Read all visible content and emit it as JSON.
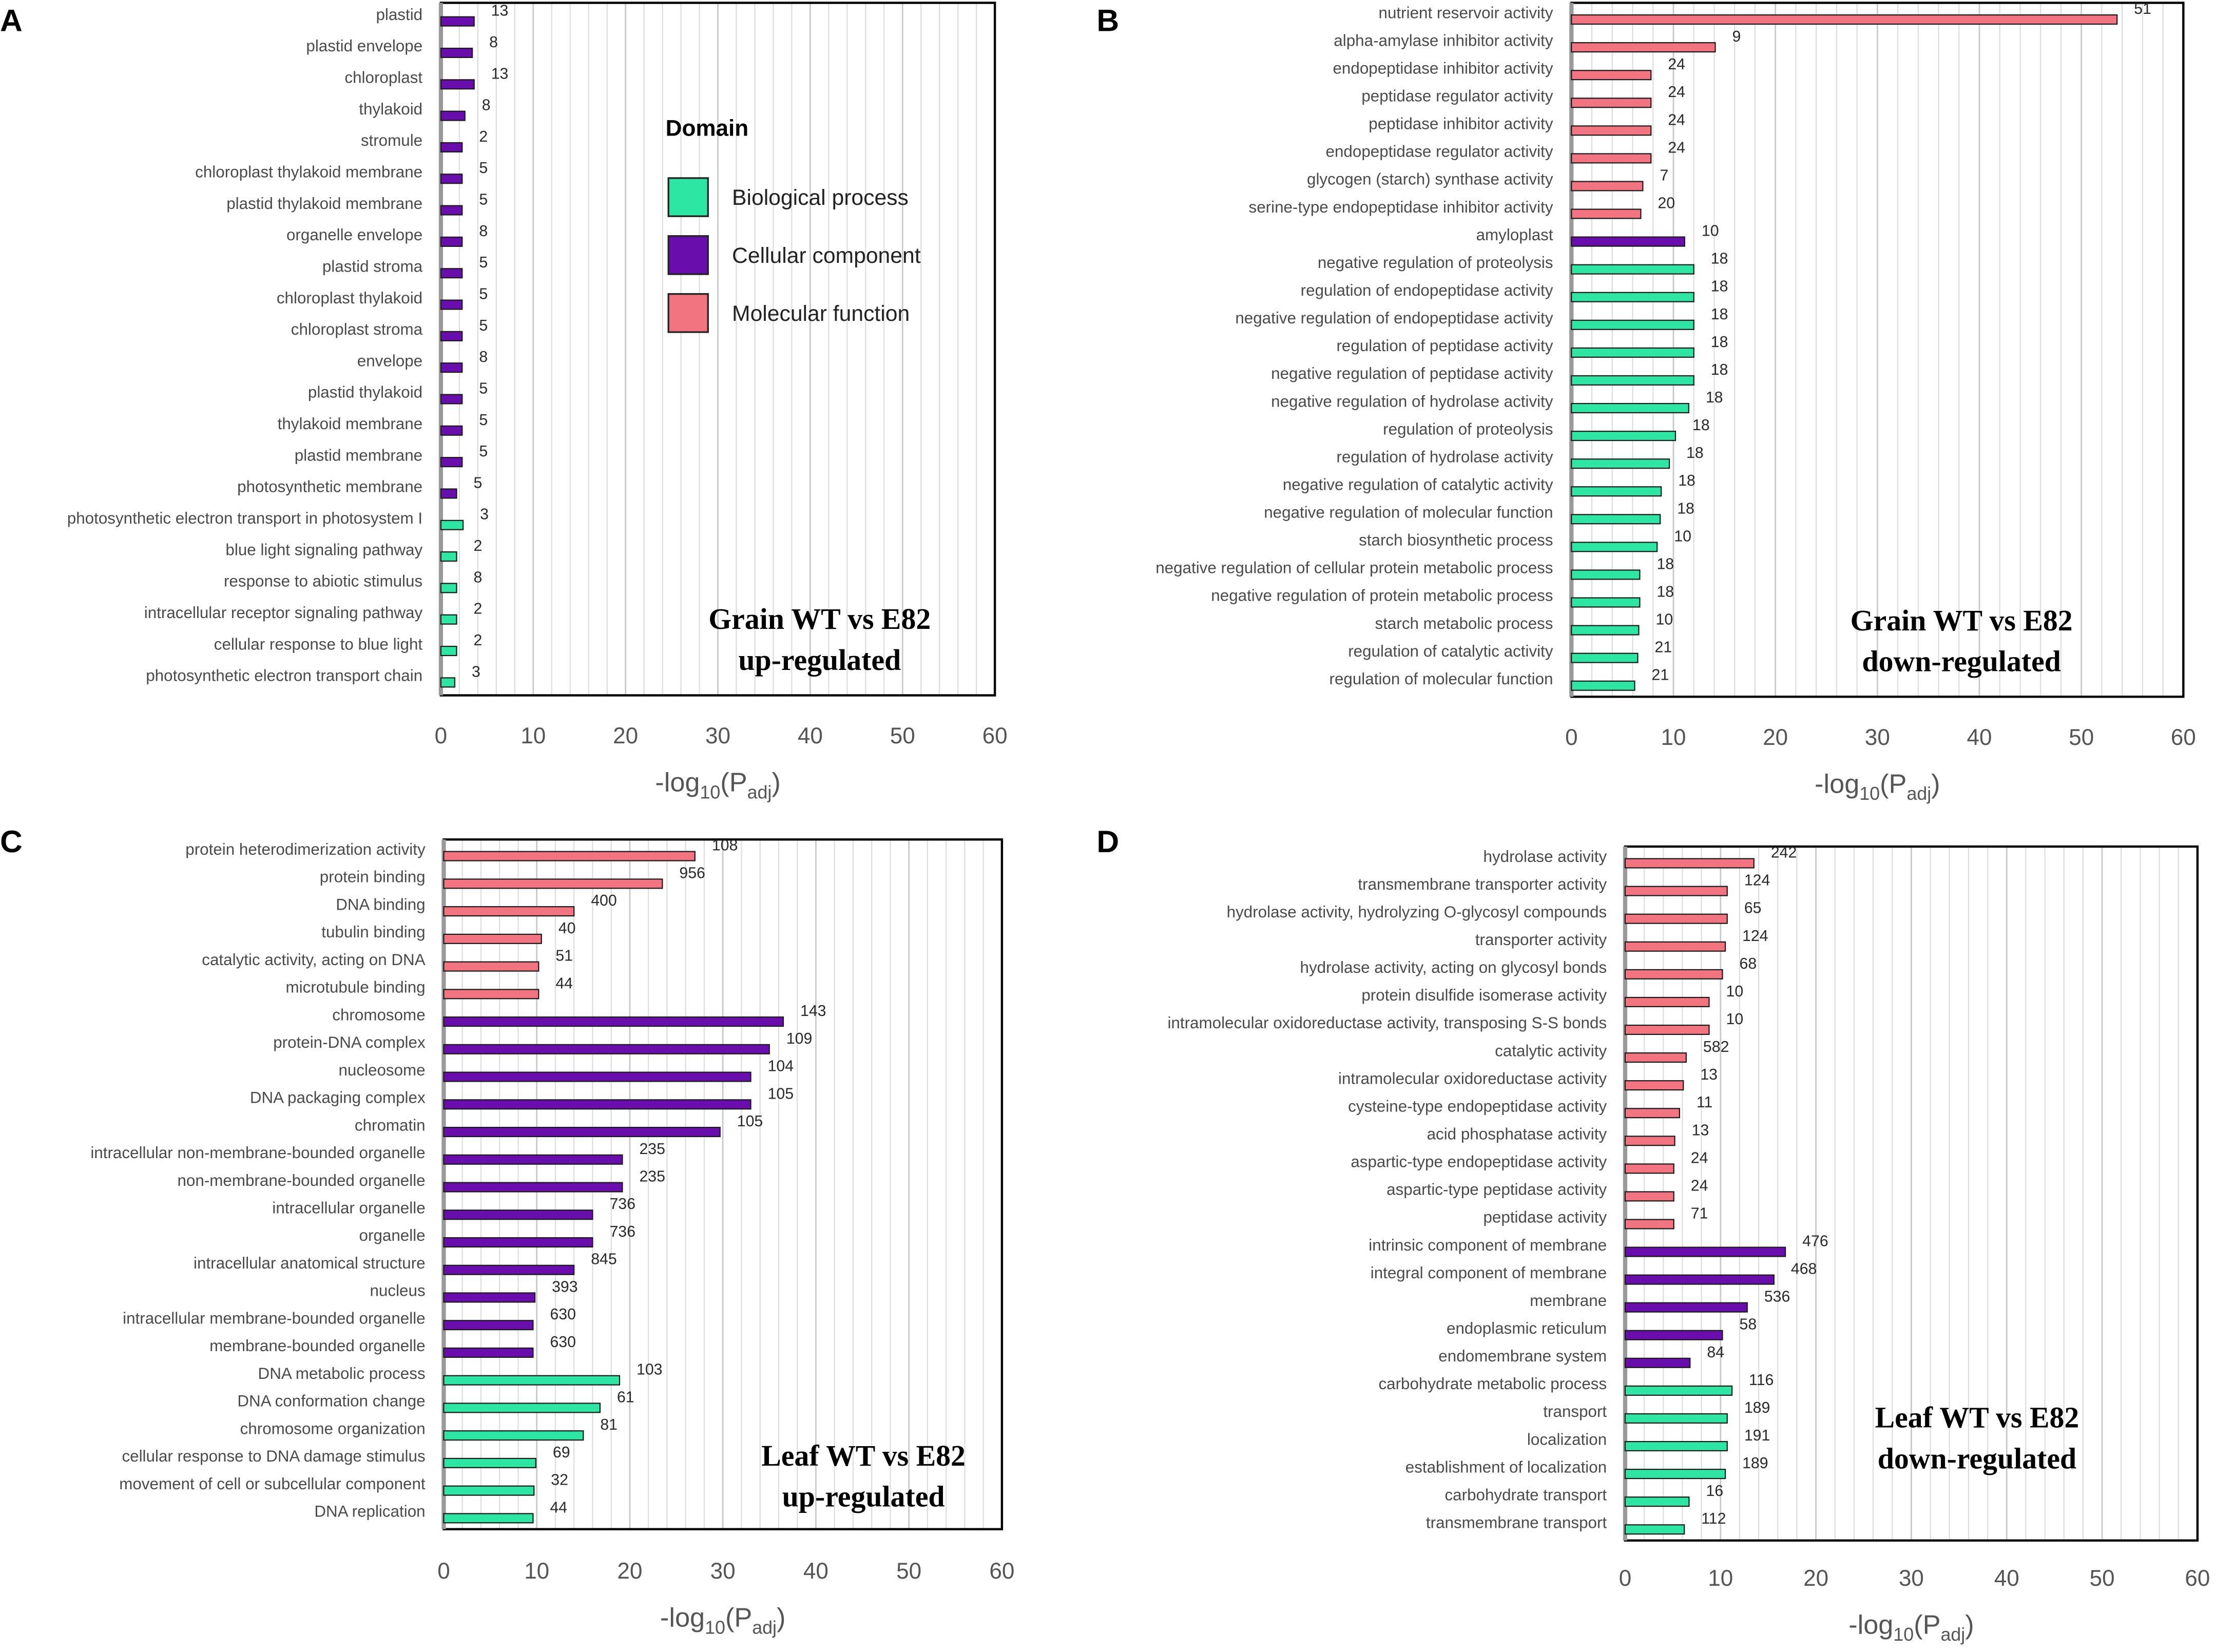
{
  "colors": {
    "Biological process": "#2ee6a3",
    "Cellular component": "#6a0dad",
    "Molecular function": "#f37481"
  },
  "legend": {
    "title": "Domain",
    "items": [
      "Biological process",
      "Cellular component",
      "Molecular function"
    ]
  },
  "chart_data": [
    {
      "type": "bar",
      "orientation": "horizontal",
      "panel": "A",
      "title": "Grain WT vs E82 up-regulated",
      "annotation": [
        "Grain WT vs E82",
        "up-regulated"
      ],
      "xlabel": {
        "prefix": "-log",
        "sub1": "10",
        "mid": "(P",
        "sub2": "adj",
        "suffix": ")"
      },
      "xlim": [
        0,
        60
      ],
      "xticks": [
        0,
        10,
        20,
        30,
        40,
        50,
        60
      ],
      "categories": [
        "plastid",
        "plastid envelope",
        "chloroplast",
        "thylakoid",
        "stromule",
        "chloroplast thylakoid membrane",
        "plastid thylakoid membrane",
        "organelle envelope",
        "plastid stroma",
        "chloroplast thylakoid",
        "chloroplast stroma",
        "envelope",
        "plastid thylakoid",
        "thylakoid membrane",
        "plastid membrane",
        "photosynthetic membrane",
        "photosynthetic electron transport in photosystem I",
        "blue light signaling pathway",
        "response to abiotic stimulus",
        "intracellular receptor signaling pathway",
        "cellular response to blue light",
        "photosynthetic electron transport chain"
      ],
      "values": [
        3.6,
        3.4,
        3.6,
        2.6,
        2.3,
        2.3,
        2.3,
        2.3,
        2.3,
        2.3,
        2.3,
        2.3,
        2.3,
        2.3,
        2.3,
        1.7,
        2.4,
        1.7,
        1.7,
        1.7,
        1.7,
        1.5
      ],
      "domains": [
        "Cellular component",
        "Cellular component",
        "Cellular component",
        "Cellular component",
        "Cellular component",
        "Cellular component",
        "Cellular component",
        "Cellular component",
        "Cellular component",
        "Cellular component",
        "Cellular component",
        "Cellular component",
        "Cellular component",
        "Cellular component",
        "Cellular component",
        "Cellular component",
        "Biological process",
        "Biological process",
        "Biological process",
        "Biological process",
        "Biological process",
        "Biological process"
      ],
      "labels": [
        "13",
        "8",
        "13",
        "8",
        "2",
        "5",
        "5",
        "8",
        "5",
        "5",
        "5",
        "8",
        "5",
        "5",
        "5",
        "5",
        "3",
        "2",
        "8",
        "2",
        "2",
        "3"
      ]
    },
    {
      "type": "bar",
      "orientation": "horizontal",
      "panel": "B",
      "title": "Grain WT vs E82 down-regulated",
      "annotation": [
        "Grain WT vs E82",
        "down-regulated"
      ],
      "xlabel": {
        "prefix": "-log",
        "sub1": "10",
        "mid": "(P",
        "sub2": "adj",
        "suffix": ")"
      },
      "xlim": [
        0,
        60
      ],
      "xticks": [
        0,
        10,
        20,
        30,
        40,
        50,
        60
      ],
      "categories": [
        "nutrient reservoir activity",
        "alpha-amylase inhibitor activity",
        "endopeptidase inhibitor activity",
        "peptidase regulator activity",
        "peptidase inhibitor activity",
        "endopeptidase regulator activity",
        "glycogen (starch) synthase activity",
        "serine-type endopeptidase inhibitor activity",
        "amyloplast",
        "negative regulation of proteolysis",
        "regulation of endopeptidase activity",
        "negative regulation of endopeptidase activity",
        "regulation of peptidase activity",
        "negative regulation of peptidase activity",
        "negative regulation of hydrolase activity",
        "regulation of proteolysis",
        "regulation of hydrolase activity",
        "negative regulation of catalytic activity",
        "negative regulation of molecular function",
        "starch biosynthetic process",
        "negative regulation of cellular protein metabolic process",
        "negative regulation of protein metabolic process",
        "starch metabolic process",
        "regulation of catalytic activity",
        "regulation of molecular function"
      ],
      "values": [
        53.5,
        14.1,
        7.8,
        7.8,
        7.8,
        7.8,
        7.0,
        6.8,
        11.1,
        12.0,
        12.0,
        12.0,
        12.0,
        12.0,
        11.5,
        10.2,
        9.6,
        8.8,
        8.7,
        8.4,
        6.7,
        6.7,
        6.6,
        6.5,
        6.2
      ],
      "domains": [
        "Molecular function",
        "Molecular function",
        "Molecular function",
        "Molecular function",
        "Molecular function",
        "Molecular function",
        "Molecular function",
        "Molecular function",
        "Cellular component",
        "Biological process",
        "Biological process",
        "Biological process",
        "Biological process",
        "Biological process",
        "Biological process",
        "Biological process",
        "Biological process",
        "Biological process",
        "Biological process",
        "Biological process",
        "Biological process",
        "Biological process",
        "Biological process",
        "Biological process",
        "Biological process"
      ],
      "labels": [
        "51",
        "9",
        "24",
        "24",
        "24",
        "24",
        "7",
        "20",
        "10",
        "18",
        "18",
        "18",
        "18",
        "18",
        "18",
        "18",
        "18",
        "18",
        "18",
        "10",
        "18",
        "18",
        "10",
        "21",
        "21"
      ]
    },
    {
      "type": "bar",
      "orientation": "horizontal",
      "panel": "C",
      "title": "Leaf WT vs E82 up-regulated",
      "annotation": [
        "Leaf WT vs E82",
        "up-regulated"
      ],
      "xlabel": {
        "prefix": "-log",
        "sub1": "10",
        "mid": "(P",
        "sub2": "adj",
        "suffix": ")"
      },
      "xlim": [
        0,
        60
      ],
      "xticks": [
        0,
        10,
        20,
        30,
        40,
        50,
        60
      ],
      "categories": [
        "protein heterodimerization activity",
        "protein binding",
        "DNA binding",
        "tubulin binding",
        "catalytic activity, acting on DNA",
        "microtubule binding",
        "chromosome",
        "protein-DNA complex",
        "nucleosome",
        "DNA packaging complex",
        "chromatin",
        "intracellular non-membrane-bounded organelle",
        "non-membrane-bounded organelle",
        "intracellular organelle",
        "organelle",
        "intracellular anatomical structure",
        "nucleus",
        "intracellular membrane-bounded organelle",
        "membrane-bounded organelle",
        "DNA metabolic process",
        "DNA conformation change",
        "chromosome organization",
        "cellular response to DNA damage stimulus",
        "movement of cell or subcellular component",
        "DNA replication"
      ],
      "values": [
        27.0,
        23.5,
        14.0,
        10.5,
        10.2,
        10.2,
        36.5,
        35.0,
        33.0,
        33.0,
        29.7,
        19.2,
        19.2,
        16.0,
        16.0,
        14.0,
        9.8,
        9.6,
        9.6,
        18.9,
        16.8,
        15.0,
        9.9,
        9.7,
        9.6
      ],
      "domains": [
        "Molecular function",
        "Molecular function",
        "Molecular function",
        "Molecular function",
        "Molecular function",
        "Molecular function",
        "Cellular component",
        "Cellular component",
        "Cellular component",
        "Cellular component",
        "Cellular component",
        "Cellular component",
        "Cellular component",
        "Cellular component",
        "Cellular component",
        "Cellular component",
        "Cellular component",
        "Cellular component",
        "Cellular component",
        "Biological process",
        "Biological process",
        "Biological process",
        "Biological process",
        "Biological process",
        "Biological process"
      ],
      "labels": [
        "108",
        "956",
        "400",
        "40",
        "51",
        "44",
        "143",
        "109",
        "104",
        "105",
        "105",
        "235",
        "235",
        "736",
        "736",
        "845",
        "393",
        "630",
        "630",
        "103",
        "61",
        "81",
        "69",
        "32",
        "44"
      ]
    },
    {
      "type": "bar",
      "orientation": "horizontal",
      "panel": "D",
      "title": "Leaf WT vs E82 down-regulated",
      "annotation": [
        "Leaf WT vs E82",
        "down-regulated"
      ],
      "xlabel": {
        "prefix": "-log",
        "sub1": "10",
        "mid": "(P",
        "sub2": "adj",
        "suffix": ")"
      },
      "xlim": [
        0,
        60
      ],
      "xticks": [
        0,
        10,
        20,
        30,
        40,
        50,
        60
      ],
      "categories": [
        "hydrolase activity",
        "transmembrane transporter activity",
        "hydrolase activity, hydrolyzing O-glycosyl compounds",
        "transporter activity",
        "hydrolase activity, acting on glycosyl bonds",
        "protein disulfide isomerase activity",
        "intramolecular oxidoreductase activity, transposing S-S bonds",
        "catalytic activity",
        "intramolecular oxidoreductase activity",
        "cysteine-type endopeptidase activity",
        "acid phosphatase activity",
        "aspartic-type endopeptidase activity",
        "aspartic-type peptidase activity",
        "peptidase activity",
        "intrinsic component of membrane",
        "integral component of membrane",
        "membrane",
        "endoplasmic reticulum",
        "endomembrane system",
        "carbohydrate metabolic process",
        "transport",
        "localization",
        "establishment of localization",
        "carbohydrate transport",
        "transmembrane transport"
      ],
      "values": [
        13.5,
        10.7,
        10.7,
        10.5,
        10.2,
        8.8,
        8.8,
        6.4,
        6.1,
        5.7,
        5.2,
        5.1,
        5.1,
        5.1,
        16.8,
        15.6,
        12.8,
        10.2,
        6.8,
        11.2,
        10.7,
        10.7,
        10.5,
        6.7,
        6.2
      ],
      "domains": [
        "Molecular function",
        "Molecular function",
        "Molecular function",
        "Molecular function",
        "Molecular function",
        "Molecular function",
        "Molecular function",
        "Molecular function",
        "Molecular function",
        "Molecular function",
        "Molecular function",
        "Molecular function",
        "Molecular function",
        "Molecular function",
        "Cellular component",
        "Cellular component",
        "Cellular component",
        "Cellular component",
        "Cellular component",
        "Biological process",
        "Biological process",
        "Biological process",
        "Biological process",
        "Biological process",
        "Biological process"
      ],
      "labels": [
        "242",
        "124",
        "65",
        "124",
        "68",
        "10",
        "10",
        "582",
        "13",
        "11",
        "13",
        "24",
        "24",
        "71",
        "476",
        "468",
        "536",
        "58",
        "84",
        "116",
        "189",
        "191",
        "189",
        "16",
        "112"
      ]
    }
  ]
}
